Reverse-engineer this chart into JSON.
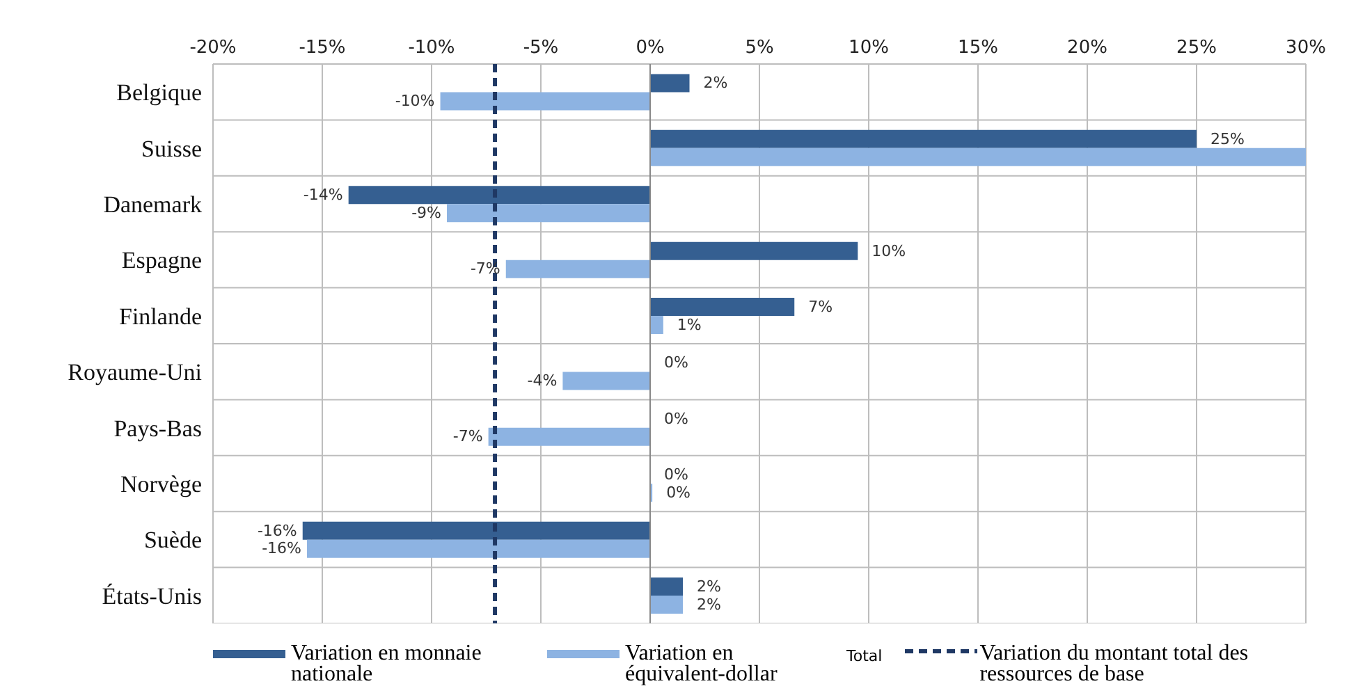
{
  "chart_data": {
    "type": "bar",
    "orientation": "horizontal",
    "categories": [
      "Belgique",
      "Suisse",
      "Danemark",
      "Espagne",
      "Finlande",
      "Royaume-Uni",
      "Pays-Bas",
      "Norvège",
      "Suède",
      "États-Unis"
    ],
    "series": [
      {
        "name": "Variation en monnaie nationale",
        "color": "#355f91",
        "values": [
          1.8,
          25,
          -13.8,
          9.5,
          6.6,
          0,
          0,
          0,
          -15.9,
          1.5
        ],
        "value_labels": [
          "2%",
          "25%",
          "-14%",
          "10%",
          "7%",
          "0%",
          "0%",
          "0%",
          "-16%",
          "2%"
        ]
      },
      {
        "name": "Variation en équivalent-dollar",
        "color": "#8db3e2",
        "values": [
          -9.6,
          30,
          -9.3,
          -6.6,
          0.6,
          -4.0,
          -7.4,
          0.1,
          -15.7,
          1.5
        ],
        "value_labels": [
          "-10%",
          null,
          "-9%",
          "-7%",
          "1%",
          "-4%",
          "-7%",
          "0%",
          "-16%",
          "2%"
        ]
      }
    ],
    "xlim": [
      -20,
      30
    ],
    "xticks": [
      {
        "value": -20,
        "label": "-20%"
      },
      {
        "value": -15,
        "label": "-15%"
      },
      {
        "value": -10,
        "label": "-10%"
      },
      {
        "value": -5,
        "label": "-5%"
      },
      {
        "value": 0,
        "label": "0%"
      },
      {
        "value": 5,
        "label": "5%"
      },
      {
        "value": 10,
        "label": "10%"
      },
      {
        "value": 15,
        "label": "15%"
      },
      {
        "value": 20,
        "label": "20%"
      },
      {
        "value": 25,
        "label": "25%"
      },
      {
        "value": 30,
        "label": "30%"
      }
    ],
    "ref_lines": [
      {
        "axis": "x",
        "value": -7.1,
        "label": "Variation du montant total des ressources de base",
        "color": "#1f3864",
        "line_style": "dashed"
      }
    ],
    "annotations": [
      "Total"
    ],
    "grid": true,
    "legend": "bottom"
  }
}
